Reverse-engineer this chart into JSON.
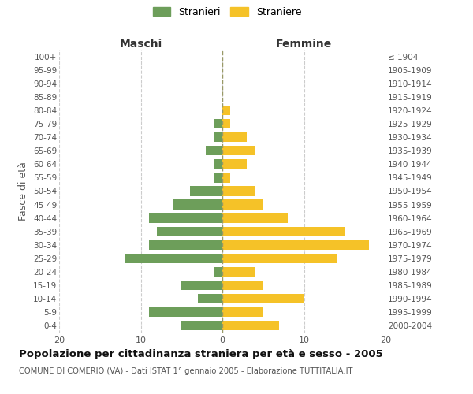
{
  "age_groups": [
    "0-4",
    "5-9",
    "10-14",
    "15-19",
    "20-24",
    "25-29",
    "30-34",
    "35-39",
    "40-44",
    "45-49",
    "50-54",
    "55-59",
    "60-64",
    "65-69",
    "70-74",
    "75-79",
    "80-84",
    "85-89",
    "90-94",
    "95-99",
    "100+"
  ],
  "birth_years": [
    "2000-2004",
    "1995-1999",
    "1990-1994",
    "1985-1989",
    "1980-1984",
    "1975-1979",
    "1970-1974",
    "1965-1969",
    "1960-1964",
    "1955-1959",
    "1950-1954",
    "1945-1949",
    "1940-1944",
    "1935-1939",
    "1930-1934",
    "1925-1929",
    "1920-1924",
    "1915-1919",
    "1910-1914",
    "1905-1909",
    "≤ 1904"
  ],
  "males": [
    5,
    9,
    3,
    5,
    1,
    12,
    9,
    8,
    9,
    6,
    4,
    1,
    1,
    2,
    1,
    1,
    0,
    0,
    0,
    0,
    0
  ],
  "females": [
    7,
    5,
    10,
    5,
    4,
    14,
    18,
    15,
    8,
    5,
    4,
    1,
    3,
    4,
    3,
    1,
    1,
    0,
    0,
    0,
    0
  ],
  "male_color": "#6d9e5a",
  "female_color": "#f5c228",
  "background_color": "#ffffff",
  "grid_color": "#cccccc",
  "dashed_color": "#999966",
  "title": "Popolazione per cittadinanza straniera per età e sesso - 2005",
  "subtitle": "COMUNE DI COMERIO (VA) - Dati ISTAT 1° gennaio 2005 - Elaborazione TUTTITALIA.IT",
  "ylabel_left": "Fasce di età",
  "header_left": "Maschi",
  "header_right": "Femmine",
  "legend_males": "Stranieri",
  "legend_females": "Straniere",
  "xlim": 20,
  "tick_labels": [
    "20",
    "10",
    "0",
    "10",
    "20"
  ],
  "tick_positions": [
    -20,
    -10,
    0,
    10,
    20
  ]
}
